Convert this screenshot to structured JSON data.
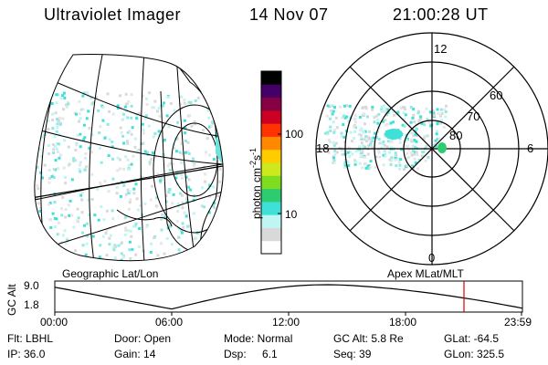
{
  "header": {
    "instrument": "Ultraviolet Imager",
    "date": "14 Nov 07",
    "time": "21:00:28 UT"
  },
  "colorbar": {
    "unit_label": "photon cm",
    "unit_exp1": "-2",
    "unit_s": "s",
    "unit_exp2": "-1",
    "ticks": [
      "100",
      "10"
    ],
    "scale": "log",
    "colors": [
      "#ffffff",
      "#d9d9d9",
      "#bff5f2",
      "#3fe0d8",
      "#2ecc71",
      "#7fdd20",
      "#cde81c",
      "#ffcc00",
      "#ff8800",
      "#ff3300",
      "#cc0022",
      "#880044",
      "#440066",
      "#000000"
    ]
  },
  "left_map": {
    "label": "Geographic Lat/Lon"
  },
  "polar_map": {
    "label": "Apex MLat/MLT",
    "mlt_labels": {
      "top": "12",
      "left": "18",
      "right": "6",
      "bottom": "0"
    },
    "lat_labels": [
      "60",
      "70",
      "80"
    ]
  },
  "timeline": {
    "axis_label": "GC Alt",
    "ticks_y": [
      "9.0",
      "1.8"
    ],
    "ticks_x": [
      "00:00",
      "06:00",
      "12:00",
      "18:00",
      "23:59"
    ],
    "marker_time": "21:00",
    "marker_color": "#dd0000"
  },
  "footer": {
    "flt": "Flt: LBHL",
    "door": "Door: Open",
    "mode": "Mode: Normal",
    "gcalt": "GC Alt: 5.8 Re",
    "glat": "GLat: -64.5",
    "ip": "IP: 36.0",
    "gain": "Gain: 14",
    "dsp_label": "Dsp:",
    "dsp_value": "6.1",
    "seq": "Seq: 39",
    "glon": "GLon: 325.5"
  }
}
